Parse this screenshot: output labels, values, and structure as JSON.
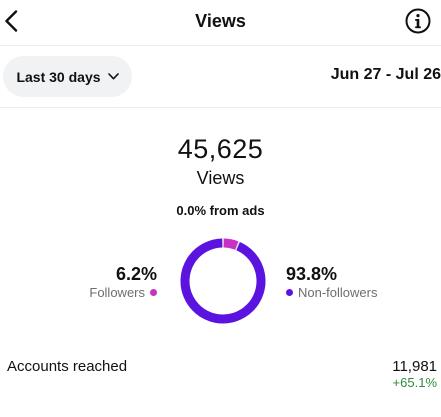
{
  "header": {
    "title": "Views",
    "back_icon": "chevron-left-icon",
    "info_icon": "info-icon"
  },
  "filter": {
    "range_label": "Last 30 days",
    "dropdown_icon": "chevron-down-icon",
    "date_range": "Jun 27 - Jul 26"
  },
  "summary": {
    "total_views": "45,625",
    "views_label": "Views",
    "ads_text": "0.0% from ads"
  },
  "breakdown": {
    "followers": {
      "percent": "6.2%",
      "label": "Followers",
      "value": 6.2,
      "color": "#c930c4"
    },
    "non_followers": {
      "percent": "93.8%",
      "label": "Non-followers",
      "value": 93.8,
      "color": "#5b14e0"
    }
  },
  "accounts_reached": {
    "label": "Accounts reached",
    "value": "11,981",
    "change": "+65.1%"
  }
}
